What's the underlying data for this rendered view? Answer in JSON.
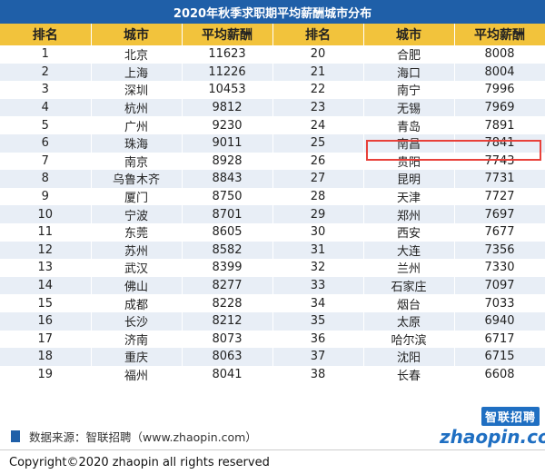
{
  "title": "2020年秋季求职期平均薪酬城市分布",
  "headers": {
    "rank": "排名",
    "city": "城市",
    "salary": "平均薪酬"
  },
  "rows": [
    [
      "1",
      "北京",
      "11623",
      "20",
      "合肥",
      "8008"
    ],
    [
      "2",
      "上海",
      "11226",
      "21",
      "海口",
      "8004"
    ],
    [
      "3",
      "深圳",
      "10453",
      "22",
      "南宁",
      "7996"
    ],
    [
      "4",
      "杭州",
      "9812",
      "23",
      "无锡",
      "7969"
    ],
    [
      "5",
      "广州",
      "9230",
      "24",
      "青岛",
      "7891"
    ],
    [
      "6",
      "珠海",
      "9011",
      "25",
      "南昌",
      "7841"
    ],
    [
      "7",
      "南京",
      "8928",
      "26",
      "贵阳",
      "7743"
    ],
    [
      "8",
      "乌鲁木齐",
      "8843",
      "27",
      "昆明",
      "7731"
    ],
    [
      "9",
      "厦门",
      "8750",
      "28",
      "天津",
      "7727"
    ],
    [
      "10",
      "宁波",
      "8701",
      "29",
      "郑州",
      "7697"
    ],
    [
      "11",
      "东莞",
      "8605",
      "30",
      "西安",
      "7677"
    ],
    [
      "12",
      "苏州",
      "8582",
      "31",
      "大连",
      "7356"
    ],
    [
      "13",
      "武汉",
      "8399",
      "32",
      "兰州",
      "7330"
    ],
    [
      "14",
      "佛山",
      "8277",
      "33",
      "石家庄",
      "7097"
    ],
    [
      "15",
      "成都",
      "8228",
      "34",
      "烟台",
      "7033"
    ],
    [
      "16",
      "长沙",
      "8212",
      "35",
      "太原",
      "6940"
    ],
    [
      "17",
      "济南",
      "8073",
      "36",
      "哈尔滨",
      "6717"
    ],
    [
      "18",
      "重庆",
      "8063",
      "37",
      "沈阳",
      "6715"
    ],
    [
      "19",
      "福州",
      "8041",
      "38",
      "长春",
      "6608"
    ]
  ],
  "highlight": {
    "rank": "25",
    "city": "南昌",
    "salary": "7841",
    "color": "#e8413a"
  },
  "source": "数据来源：智联招聘（www.zhaopin.com）",
  "logo": {
    "cn": "智联招聘",
    "en": "zhaopin.com"
  },
  "copyright": "Copyright©2020 zhaopin all rights reserved",
  "colors": {
    "title_bg": "#1f5fa8",
    "header_bg": "#f2c33c",
    "row_alt": "#e8eef6"
  }
}
